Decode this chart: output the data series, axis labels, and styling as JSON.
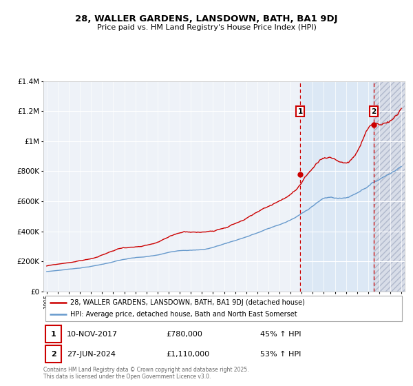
{
  "title": "28, WALLER GARDENS, LANSDOWN, BATH, BA1 9DJ",
  "subtitle": "Price paid vs. HM Land Registry's House Price Index (HPI)",
  "legend_line1": "28, WALLER GARDENS, LANSDOWN, BATH, BA1 9DJ (detached house)",
  "legend_line2": "HPI: Average price, detached house, Bath and North East Somerset",
  "annotation1_date": "10-NOV-2017",
  "annotation1_price": "£780,000",
  "annotation1_hpi": "45% ↑ HPI",
  "annotation2_date": "27-JUN-2024",
  "annotation2_price": "£1,110,000",
  "annotation2_hpi": "53% ↑ HPI",
  "red_line_color": "#cc0000",
  "blue_line_color": "#6699cc",
  "background_color": "#ffffff",
  "plot_bg_color": "#eef2f8",
  "grid_color": "#ffffff",
  "vline_color": "#cc0000",
  "highlight_bg": "#dce8f5",
  "hatch_color": "#d8dde8",
  "footer_text": "Contains HM Land Registry data © Crown copyright and database right 2025.\nThis data is licensed under the Open Government Licence v3.0.",
  "ylim": [
    0,
    1400000
  ],
  "yticks": [
    0,
    200000,
    400000,
    600000,
    800000,
    1000000,
    1200000,
    1400000
  ],
  "year_start": 1995,
  "year_end": 2027,
  "purchase1_year": 2017.87,
  "purchase2_year": 2024.49,
  "purchase1_value": 780000,
  "purchase2_value": 1110000
}
